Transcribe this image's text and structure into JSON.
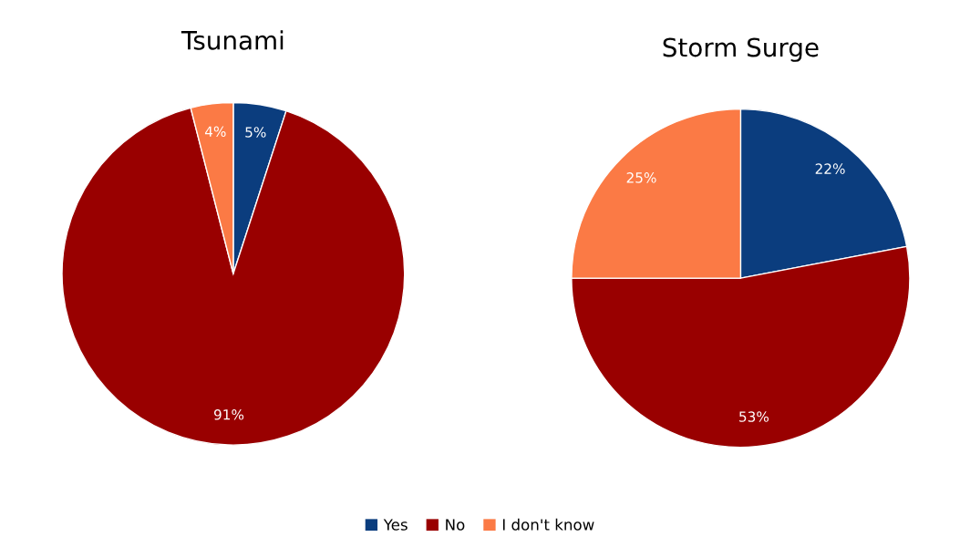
{
  "chart_data": [
    {
      "type": "pie",
      "title": "Tsunami",
      "categories": [
        "Yes",
        "No",
        "I don't know"
      ],
      "values": [
        5,
        91,
        4
      ],
      "value_labels": [
        "5%",
        "91%",
        "4%"
      ],
      "colors": [
        "#0b3d7e",
        "#990000",
        "#fb7a45"
      ],
      "legend": "bottom"
    },
    {
      "type": "pie",
      "title": "Storm Surge",
      "categories": [
        null,
        null,
        null
      ],
      "values": [
        22,
        53,
        25
      ],
      "value_labels": [
        "22%",
        "53%",
        "25%"
      ],
      "colors": [
        "#0b3d7e",
        "#990000",
        "#fb7a45"
      ]
    }
  ]
}
